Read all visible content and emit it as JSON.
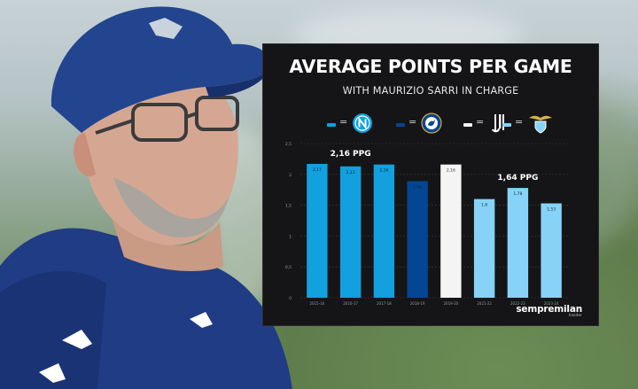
{
  "chart_data": {
    "type": "bar",
    "title": "AVERAGE POINTS PER GAME",
    "subtitle": "WITH MAURIZIO SARRI IN CHARGE",
    "categories": [
      "2015-16",
      "2016-17",
      "2017-18",
      "2018-19",
      "2019-20",
      "2021-22",
      "2022-23",
      "2023-24"
    ],
    "values": [
      2.17,
      2.13,
      2.16,
      1.89,
      2.16,
      1.6,
      1.78,
      1.53
    ],
    "value_labels": [
      "2,17",
      "2,13",
      "2,16",
      "1,89",
      "2,16",
      "1,6",
      "1,78",
      "1,53"
    ],
    "clubs": [
      "napoli",
      "napoli",
      "napoli",
      "chelsea",
      "juventus",
      "lazio",
      "lazio",
      "lazio"
    ],
    "y_ticks": [
      "0",
      "0,5",
      "1",
      "1,5",
      "2",
      "2,5"
    ],
    "ylim": [
      0,
      2.5
    ],
    "grid": true,
    "annotations": [
      {
        "text": "2,16 PPG",
        "category_span": [
          "2015-16",
          "2017-18"
        ]
      },
      {
        "text": "1,64 PPG",
        "category_span": [
          "2021-22",
          "2023-24"
        ]
      }
    ],
    "legend": [
      {
        "club": "napoli",
        "symbol": "=",
        "icon": "napoli-logo-icon"
      },
      {
        "club": "chelsea",
        "symbol": "=",
        "icon": "chelsea-logo-icon"
      },
      {
        "club": "juventus",
        "symbol": "=",
        "icon": "juventus-logo-icon"
      },
      {
        "club": "lazio",
        "symbol": "=",
        "icon": "lazio-logo-icon"
      }
    ],
    "colors": {
      "napoli": "#12a0de",
      "chelsea": "#034694",
      "juventus": "#f4f4f4",
      "lazio": "#87d3f8",
      "grid": "#3a3a3e",
      "tick": "#9a9a9a",
      "annotation": "#ffffff"
    }
  },
  "brand": {
    "name": "sempremilan",
    "tagline": "Insider"
  }
}
